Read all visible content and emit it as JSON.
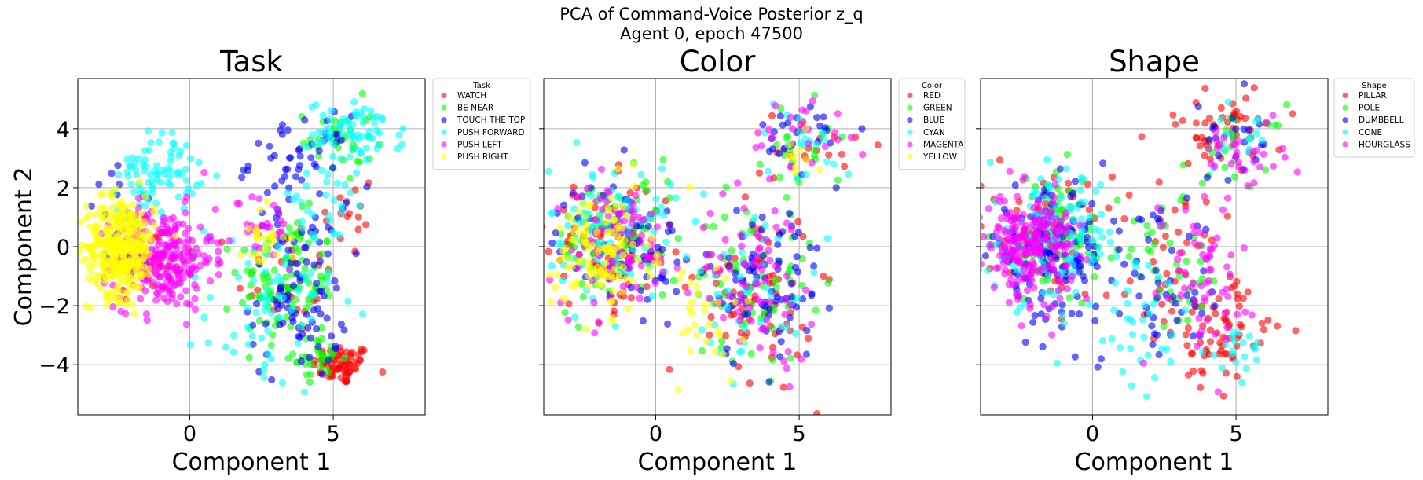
{
  "figure": {
    "title_line1": "PCA of Command-Voice Posterior z_q",
    "title_line2": "Agent 0, epoch 47500"
  },
  "chart_data": [
    {
      "type": "scatter",
      "title": "Task",
      "xlabel": "Component 1",
      "ylabel": "Component 2",
      "xlim": [
        -3.9,
        8.2
      ],
      "ylim": [
        -5.7,
        5.7
      ],
      "xticks": [
        0,
        5
      ],
      "yticks": [
        4,
        2,
        0,
        -2,
        -4
      ],
      "tick_labels_x": [
        "0",
        "5"
      ],
      "tick_labels_y": [
        "4",
        "2",
        "0",
        "−2",
        "−4"
      ],
      "grid": true,
      "legend": {
        "title": "Task",
        "placement": "outside-upper-right"
      },
      "series": [
        {
          "name": "WATCH",
          "color": "#ff0000",
          "clusters": [
            [
              5.3,
              -4.0,
              0.6,
              0.4,
              70
            ],
            [
              3.3,
              -1.0,
              1.0,
              1.2,
              25
            ],
            [
              -1.5,
              -0.3,
              0.8,
              1.0,
              25
            ],
            [
              5.5,
              1.0,
              0.6,
              1.0,
              15
            ]
          ]
        },
        {
          "name": "BE NEAR",
          "color": "#00ff00",
          "clusters": [
            [
              3.4,
              -1.2,
              1.0,
              1.3,
              110
            ],
            [
              5.2,
              3.6,
              0.7,
              0.8,
              35
            ],
            [
              4.5,
              -3.8,
              0.5,
              0.4,
              30
            ]
          ]
        },
        {
          "name": "TOUCH THE TOP",
          "color": "#0000ff",
          "clusters": [
            [
              3.8,
              -1.5,
              1.0,
              1.8,
              90
            ],
            [
              3.8,
              2.9,
              1.0,
              0.9,
              50
            ],
            [
              -2.2,
              0.6,
              0.9,
              1.2,
              30
            ]
          ]
        },
        {
          "name": "PUSH FORWARD",
          "color": "#00ffff",
          "clusters": [
            [
              5.8,
              3.9,
              1.0,
              0.6,
              70
            ],
            [
              -1.1,
              2.5,
              0.8,
              0.8,
              80
            ],
            [
              2.8,
              -2.0,
              1.3,
              1.8,
              70
            ],
            [
              4.5,
              1.5,
              1.2,
              0.8,
              25
            ]
          ]
        },
        {
          "name": "PUSH LEFT",
          "color": "#ff00ff",
          "clusters": [
            [
              -0.9,
              -0.4,
              1.0,
              1.0,
              240
            ],
            [
              2.5,
              0.5,
              0.8,
              0.8,
              30
            ]
          ]
        },
        {
          "name": "PUSH RIGHT",
          "color": "#ffff00",
          "clusters": [
            [
              -2.4,
              0.0,
              0.7,
              1.0,
              340
            ],
            [
              2.6,
              0.3,
              0.5,
              0.6,
              25
            ]
          ]
        }
      ]
    },
    {
      "type": "scatter",
      "title": "Color",
      "xlabel": "Component 1",
      "xlim": [
        -3.9,
        8.2
      ],
      "ylim": [
        -5.7,
        5.7
      ],
      "xticks": [
        0,
        5
      ],
      "yticks": [
        4,
        2,
        0,
        -2,
        -4
      ],
      "tick_labels_x": [
        "0",
        "5"
      ],
      "grid": true,
      "legend": {
        "title": "Color",
        "placement": "outside-upper-right"
      },
      "series": [
        {
          "name": "RED",
          "color": "#ff0000",
          "clusters": [
            [
              -1.5,
              0.0,
              1.3,
              1.3,
              90
            ],
            [
              3.5,
              -1.5,
              1.2,
              1.7,
              70
            ],
            [
              5.3,
              3.5,
              1.0,
              0.8,
              20
            ]
          ]
        },
        {
          "name": "GREEN",
          "color": "#00ff00",
          "clusters": [
            [
              -1.4,
              0.2,
              1.3,
              1.3,
              80
            ],
            [
              3.4,
              -1.2,
              1.2,
              1.6,
              70
            ],
            [
              5.0,
              3.3,
              1.0,
              0.9,
              20
            ]
          ]
        },
        {
          "name": "BLUE",
          "color": "#0000ff",
          "clusters": [
            [
              -1.2,
              0.1,
              1.3,
              1.3,
              80
            ],
            [
              3.8,
              -1.2,
              1.2,
              1.7,
              80
            ],
            [
              5.3,
              3.8,
              0.9,
              0.8,
              25
            ]
          ]
        },
        {
          "name": "CYAN",
          "color": "#00ffff",
          "clusters": [
            [
              -1.5,
              0.5,
              1.3,
              1.3,
              100
            ],
            [
              3.5,
              -1.3,
              1.2,
              1.6,
              40
            ],
            [
              5.2,
              3.6,
              1.0,
              0.8,
              20
            ]
          ]
        },
        {
          "name": "MAGENTA",
          "color": "#ff00ff",
          "clusters": [
            [
              -1.4,
              0.0,
              1.3,
              1.3,
              90
            ],
            [
              3.5,
              -1.0,
              1.2,
              1.7,
              70
            ],
            [
              5.0,
              3.7,
              1.0,
              0.8,
              25
            ]
          ]
        },
        {
          "name": "YELLOW",
          "color": "#ffff00",
          "clusters": [
            [
              -1.9,
              -0.2,
              1.0,
              1.2,
              120
            ],
            [
              1.5,
              -2.5,
              1.2,
              1.5,
              30
            ],
            [
              5.0,
              2.8,
              0.8,
              0.7,
              10
            ]
          ]
        }
      ]
    },
    {
      "type": "scatter",
      "title": "Shape",
      "xlabel": "Component 1",
      "xlim": [
        -3.9,
        8.2
      ],
      "ylim": [
        -5.7,
        5.7
      ],
      "xticks": [
        0,
        5
      ],
      "yticks": [
        4,
        2,
        0,
        -2,
        -4
      ],
      "tick_labels_x": [
        "0",
        "5"
      ],
      "grid": true,
      "legend": {
        "title": "Shape",
        "placement": "outside-upper-right"
      },
      "series": [
        {
          "name": "PILLAR",
          "color": "#ff0000",
          "clusters": [
            [
              -1.5,
              0.3,
              1.3,
              1.3,
              70
            ],
            [
              4.5,
              -3.0,
              1.0,
              1.0,
              60
            ],
            [
              4.5,
              4.0,
              1.3,
              0.8,
              50
            ],
            [
              3.0,
              -0.5,
              1.0,
              1.5,
              40
            ]
          ]
        },
        {
          "name": "POLE",
          "color": "#00ff00",
          "clusters": [
            [
              -1.2,
              0.3,
              1.3,
              1.3,
              100
            ],
            [
              3.0,
              -0.5,
              1.2,
              1.5,
              40
            ],
            [
              5.0,
              3.5,
              1.0,
              0.8,
              20
            ]
          ]
        },
        {
          "name": "DUMBBELL",
          "color": "#0000ff",
          "clusters": [
            [
              -1.5,
              -0.3,
              1.2,
              1.3,
              140
            ],
            [
              2.5,
              -1.5,
              1.3,
              1.5,
              50
            ],
            [
              5.0,
              3.5,
              0.9,
              0.8,
              20
            ]
          ]
        },
        {
          "name": "CONE",
          "color": "#00ffff",
          "clusters": [
            [
              -1.4,
              0.3,
              1.3,
              1.3,
              120
            ],
            [
              1.5,
              -2.5,
              1.2,
              1.5,
              40
            ],
            [
              5.0,
              -3.5,
              0.6,
              0.5,
              20
            ],
            [
              5.0,
              3.8,
              1.0,
              0.7,
              15
            ]
          ]
        },
        {
          "name": "HOURGLASS",
          "color": "#ff00ff",
          "clusters": [
            [
              -2.2,
              0.0,
              0.9,
              1.0,
              220
            ],
            [
              3.8,
              -0.8,
              1.0,
              1.5,
              60
            ],
            [
              5.2,
              3.3,
              0.9,
              0.8,
              30
            ]
          ]
        }
      ]
    }
  ]
}
